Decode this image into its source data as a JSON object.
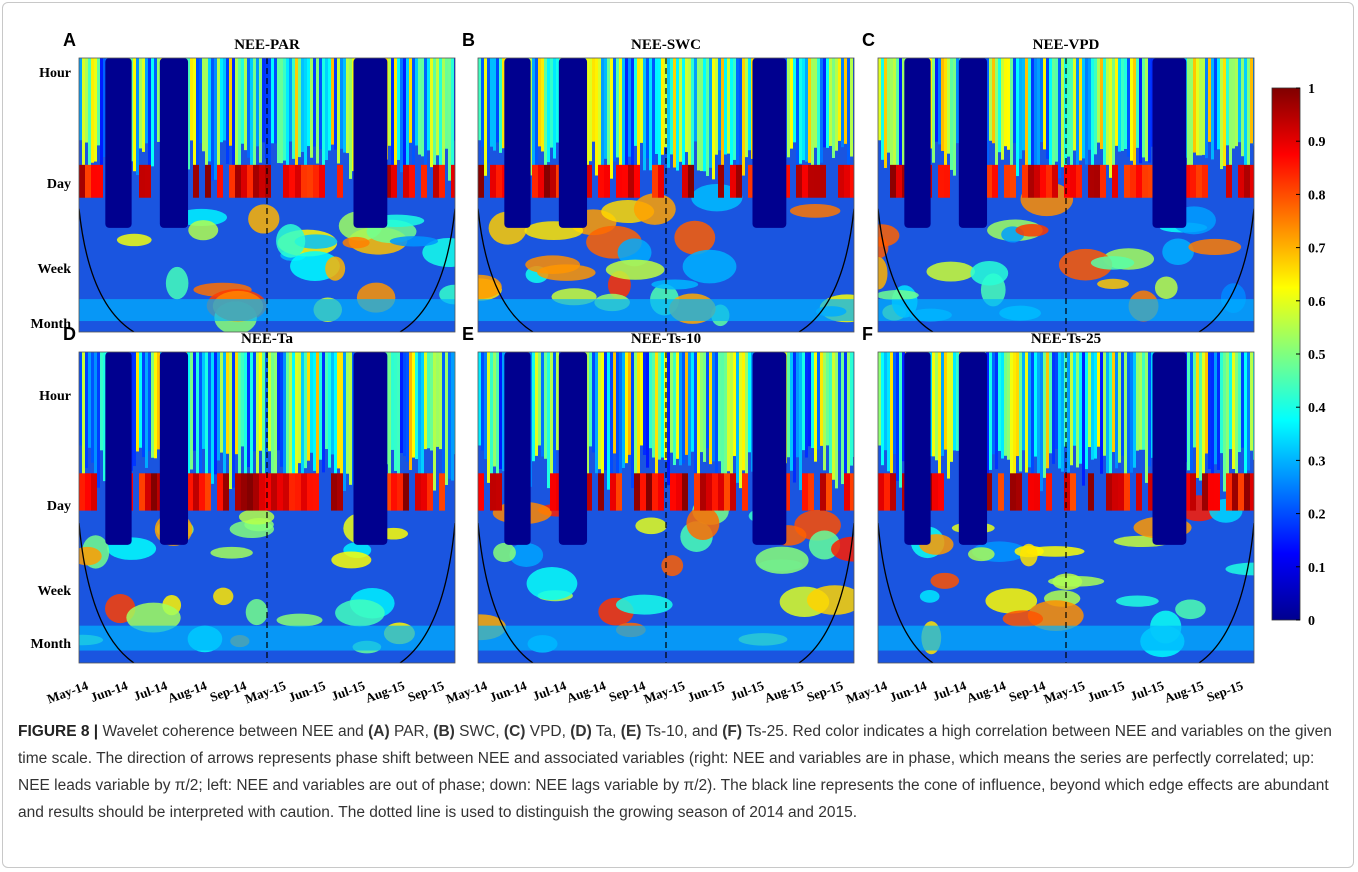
{
  "panels": [
    {
      "letter": "A",
      "title": "NEE-PAR"
    },
    {
      "letter": "B",
      "title": "NEE-SWC"
    },
    {
      "letter": "C",
      "title": "NEE-VPD"
    },
    {
      "letter": "D",
      "title": "NEE-Ta"
    },
    {
      "letter": "E",
      "title": "NEE-Ts-10"
    },
    {
      "letter": "F",
      "title": "NEE-Ts-25"
    }
  ],
  "y_labels": [
    "Hour",
    "Day",
    "Week",
    "Month"
  ],
  "x_labels": [
    "May-14",
    "Jun-14",
    "Jul-14",
    "Aug-14",
    "Sep-14",
    "May-15",
    "Jun-15",
    "Jul-15",
    "Aug-15",
    "Sep-15"
  ],
  "colorbar": {
    "ylim": [
      0,
      1
    ],
    "yticks": [
      0,
      0.1,
      0.2,
      0.3,
      0.4,
      0.5,
      0.6,
      0.7,
      0.8,
      0.9,
      1
    ]
  },
  "caption": {
    "label": "FIGURE 8 |",
    "parts": [
      {
        "text": " Wavelet coherence between NEE and ",
        "bold": false
      },
      {
        "text": "(A)",
        "bold": true
      },
      {
        "text": " PAR, ",
        "bold": false
      },
      {
        "text": "(B)",
        "bold": true
      },
      {
        "text": " SWC, ",
        "bold": false
      },
      {
        "text": "(C)",
        "bold": true
      },
      {
        "text": " VPD, ",
        "bold": false
      },
      {
        "text": "(D)",
        "bold": true
      },
      {
        "text": " Ta, ",
        "bold": false
      },
      {
        "text": "(E)",
        "bold": true
      },
      {
        "text": " Ts-10, and ",
        "bold": false
      },
      {
        "text": "(F)",
        "bold": true
      },
      {
        "text": " Ts-25. Red color indicates a high correlation between NEE and variables on the given time scale. The direction of arrows represents phase shift between NEE and associated variables (right: NEE and variables are in phase, which means the series are perfectly correlated; up: NEE leads variable by π/2; left: NEE and variables are out of phase; down: NEE lags variable by π/2). The black line represents the cone of influence, beyond which edge effects are abundant and results should be interpreted with caution. The dotted line is used to distinguish the growing season of 2014 and 2015.",
        "bold": false
      }
    ]
  }
}
